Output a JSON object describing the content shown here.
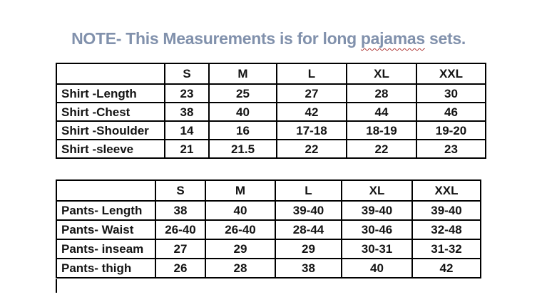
{
  "title": {
    "prefix": "NOTE- This Measurements is for long ",
    "misspelled_word": "pajamas",
    "suffix": " sets."
  },
  "colors": {
    "title_text": "#8191AC",
    "spellcheck_underline": "#B03A38",
    "table_border": "#000000",
    "background": "#FFFFFF",
    "table_text": "#141414"
  },
  "tables": [
    {
      "name": "shirt-measurements",
      "header": [
        "",
        "S",
        "M",
        "L",
        "XL",
        "XXL"
      ],
      "rows": [
        {
          "label": "Shirt -Length",
          "values": [
            "23",
            "25",
            "27",
            "28",
            "30"
          ]
        },
        {
          "label": "Shirt -Chest",
          "values": [
            "38",
            "40",
            "42",
            "44",
            "46"
          ]
        },
        {
          "label": "Shirt -Shoulder",
          "values": [
            "14",
            "16",
            "17-18",
            "18-19",
            "19-20"
          ]
        },
        {
          "label": "Shirt -sleeve",
          "values": [
            "21",
            "21.5",
            "22",
            "22",
            "23"
          ]
        }
      ]
    },
    {
      "name": "pants-measurements",
      "header": [
        "",
        "S",
        "M",
        "L",
        "XL",
        "XXL"
      ],
      "rows": [
        {
          "label": "Pants- Length",
          "values": [
            "38",
            "40",
            "39-40",
            "39-40",
            "39-40"
          ]
        },
        {
          "label": "Pants- Waist",
          "values": [
            "26-40",
            "26-40",
            "28-44",
            "30-46",
            "32-48"
          ]
        },
        {
          "label": "Pants- inseam",
          "values": [
            "27",
            "29",
            "29",
            "30-31",
            "31-32"
          ]
        },
        {
          "label": "Pants- thigh",
          "values": [
            "26",
            "28",
            "38",
            "40",
            "42"
          ]
        }
      ]
    }
  ],
  "cursor": {
    "visible": "true"
  }
}
